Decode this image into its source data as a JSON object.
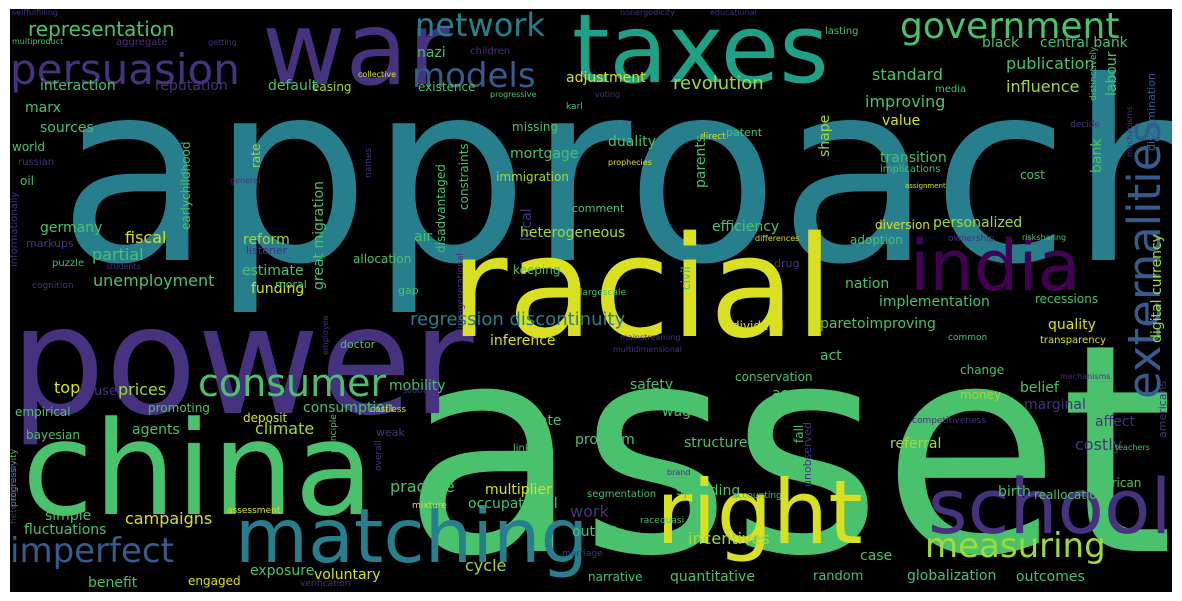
{
  "background": "#000000",
  "palette": [
    "#440154",
    "#46327e",
    "#365c8d",
    "#277f8e",
    "#1fa187",
    "#4ac16d",
    "#a0da39",
    "#fde725"
  ],
  "words": [
    {
      "text": "approach",
      "color": "#277f8e"
    },
    {
      "text": "asset",
      "color": "#4ac16d"
    },
    {
      "text": "power",
      "color": "#46327e"
    },
    {
      "text": "racial",
      "color": "#d9e021"
    },
    {
      "text": "china",
      "color": "#4ac16d"
    },
    {
      "text": "war",
      "color": "#46327e"
    },
    {
      "text": "taxes",
      "color": "#1fa187"
    },
    {
      "text": "right",
      "color": "#d9e021"
    },
    {
      "text": "india",
      "color": "#440154"
    },
    {
      "text": "school",
      "color": "#46327e"
    },
    {
      "text": "matching",
      "color": "#277f8e"
    },
    {
      "text": "externalities",
      "color": "#365c8d"
    },
    {
      "text": "persuasion",
      "color": "#46327e"
    },
    {
      "text": "government",
      "color": "#4ac16d"
    },
    {
      "text": "consumer",
      "color": "#4ac16d"
    },
    {
      "text": "measuring",
      "color": "#a0da39"
    },
    {
      "text": "imperfect",
      "color": "#365c8d"
    },
    {
      "text": "network",
      "color": "#277f8e"
    },
    {
      "text": "models",
      "color": "#365c8d"
    },
    {
      "text": "representation",
      "color": "#4ac16d"
    },
    {
      "text": "regression discontinuity",
      "color": "#277f8e"
    },
    {
      "text": "revolution",
      "color": "#a0da39"
    },
    {
      "text": "improving",
      "color": "#4ac16d"
    },
    {
      "text": "standard",
      "color": "#4ac16d"
    },
    {
      "text": "publication",
      "color": "#4ac16d"
    },
    {
      "text": "influence",
      "color": "#a0da39"
    },
    {
      "text": "black",
      "color": "#4ac16d"
    },
    {
      "text": "central bank",
      "color": "#4ac16d"
    },
    {
      "text": "labour",
      "color": "#4ac16d"
    },
    {
      "text": "default",
      "color": "#4ac16d"
    },
    {
      "text": "interaction",
      "color": "#4ac16d"
    },
    {
      "text": "reputation",
      "color": "#46327e"
    },
    {
      "text": "adjustment",
      "color": "#d9e021"
    },
    {
      "text": "easing",
      "color": "#a0da39"
    },
    {
      "text": "existence",
      "color": "#4ac16d"
    },
    {
      "text": "marx",
      "color": "#4ac16d"
    },
    {
      "text": "sources",
      "color": "#4ac16d"
    },
    {
      "text": "world",
      "color": "#4ac16d"
    },
    {
      "text": "nazi",
      "color": "#4ac16d"
    },
    {
      "text": "children",
      "color": "#46327e"
    },
    {
      "text": "aggregate",
      "color": "#46327e"
    },
    {
      "text": "getting",
      "color": "#46327e"
    },
    {
      "text": "multiproduct",
      "color": "#4ac16d"
    },
    {
      "text": "selffulfilling",
      "color": "#46327e"
    },
    {
      "text": "nonergodicity",
      "color": "#46327e"
    },
    {
      "text": "educational",
      "color": "#46327e"
    },
    {
      "text": "lasting",
      "color": "#4ac16d"
    },
    {
      "text": "collective",
      "color": "#d9e021"
    },
    {
      "text": "progressive",
      "color": "#4ac16d"
    },
    {
      "text": "voting",
      "color": "#46327e"
    },
    {
      "text": "distinctively",
      "color": "#4ac16d"
    },
    {
      "text": "discrimination",
      "color": "#365c8d"
    },
    {
      "text": "media",
      "color": "#4ac16d"
    },
    {
      "text": "karl",
      "color": "#4ac16d"
    },
    {
      "text": "missing",
      "color": "#4ac16d"
    },
    {
      "text": "duality",
      "color": "#4ac16d"
    },
    {
      "text": "patent",
      "color": "#4ac16d"
    },
    {
      "text": "value",
      "color": "#d9e021"
    },
    {
      "text": "decide",
      "color": "#46327e"
    },
    {
      "text": "mechanisms",
      "color": "#46327e"
    },
    {
      "text": "prophecies",
      "color": "#d9e021"
    },
    {
      "text": "direct",
      "color": "#d9e021"
    },
    {
      "text": "mortgage",
      "color": "#4ac16d"
    },
    {
      "text": "transition",
      "color": "#4ac16d"
    },
    {
      "text": "implications",
      "color": "#4ac16d"
    },
    {
      "text": "assignment",
      "color": "#d9e021"
    },
    {
      "text": "cost",
      "color": "#4ac16d"
    },
    {
      "text": "immigration",
      "color": "#a0da39"
    },
    {
      "text": "constraints",
      "color": "#4ac16d"
    },
    {
      "text": "parents",
      "color": "#4ac16d"
    },
    {
      "text": "shape",
      "color": "#a0da39"
    },
    {
      "text": "bank",
      "color": "#4ac16d"
    },
    {
      "text": "rate",
      "color": "#a0da39"
    },
    {
      "text": "earlychildhood",
      "color": "#4ac16d"
    },
    {
      "text": "russian",
      "color": "#46327e"
    },
    {
      "text": "oil",
      "color": "#4ac16d"
    },
    {
      "text": "general",
      "color": "#46327e"
    },
    {
      "text": "names",
      "color": "#46327e"
    },
    {
      "text": "informationally",
      "color": "#46327e"
    },
    {
      "text": "disadvantaged",
      "color": "#4ac16d"
    },
    {
      "text": "local",
      "color": "#46327e"
    },
    {
      "text": "comment",
      "color": "#4ac16d"
    },
    {
      "text": "heterogeneous",
      "color": "#a0da39"
    },
    {
      "text": "efficiency",
      "color": "#4ac16d"
    },
    {
      "text": "personalized",
      "color": "#a0da39"
    },
    {
      "text": "diversion",
      "color": "#d9e021"
    },
    {
      "text": "adoption",
      "color": "#4ac16d"
    },
    {
      "text": "differences",
      "color": "#d9e021"
    },
    {
      "text": "ownership",
      "color": "#46327e"
    },
    {
      "text": "risksharing",
      "color": "#4ac16d"
    },
    {
      "text": "digital currency",
      "color": "#a0da39"
    },
    {
      "text": "germany",
      "color": "#4ac16d"
    },
    {
      "text": "fiscal",
      "color": "#d9e021"
    },
    {
      "text": "reform",
      "color": "#a0da39"
    },
    {
      "text": "markups",
      "color": "#46327e"
    },
    {
      "text": "partial",
      "color": "#4ac16d"
    },
    {
      "text": "listener",
      "color": "#46327e"
    },
    {
      "text": "air",
      "color": "#4ac16d"
    },
    {
      "text": "great migration",
      "color": "#4ac16d"
    },
    {
      "text": "drug",
      "color": "#46327e"
    },
    {
      "text": "unemployment",
      "color": "#4ac16d"
    },
    {
      "text": "estimate",
      "color": "#4ac16d"
    },
    {
      "text": "allocation",
      "color": "#4ac16d"
    },
    {
      "text": "students",
      "color": "#46327e"
    },
    {
      "text": "puzzle",
      "color": "#4ac16d"
    },
    {
      "text": "cognition",
      "color": "#46327e"
    },
    {
      "text": "funding",
      "color": "#d9e021"
    },
    {
      "text": "moral",
      "color": "#4ac16d"
    },
    {
      "text": "gap",
      "color": "#4ac16d"
    },
    {
      "text": "keeping",
      "color": "#4ac16d"
    },
    {
      "text": "civil",
      "color": "#4ac16d"
    },
    {
      "text": "largescale",
      "color": "#4ac16d"
    },
    {
      "text": "intragenerational",
      "color": "#46327e"
    },
    {
      "text": "nation",
      "color": "#4ac16d"
    },
    {
      "text": "implementation",
      "color": "#4ac16d"
    },
    {
      "text": "recessions",
      "color": "#4ac16d"
    },
    {
      "text": "quality",
      "color": "#d9e021"
    },
    {
      "text": "transparency",
      "color": "#d9e021"
    },
    {
      "text": "common",
      "color": "#4ac16d"
    },
    {
      "text": "paretoimproving",
      "color": "#4ac16d"
    },
    {
      "text": "dividend",
      "color": "#d9e021"
    },
    {
      "text": "mainstreaming",
      "color": "#46327e"
    },
    {
      "text": "multidimensional",
      "color": "#46327e"
    },
    {
      "text": "employee",
      "color": "#46327e"
    },
    {
      "text": "doctor",
      "color": "#4ac16d"
    },
    {
      "text": "inference",
      "color": "#d9e021"
    },
    {
      "text": "act",
      "color": "#4ac16d"
    },
    {
      "text": "top",
      "color": "#d9e021"
    },
    {
      "text": "prices",
      "color": "#a0da39"
    },
    {
      "text": "use",
      "color": "#46327e"
    },
    {
      "text": "mobility",
      "color": "#4ac16d"
    },
    {
      "text": "consumption",
      "color": "#4ac16d"
    },
    {
      "text": "safety",
      "color": "#4ac16d"
    },
    {
      "text": "conservation",
      "color": "#4ac16d"
    },
    {
      "text": "change",
      "color": "#4ac16d"
    },
    {
      "text": "belief",
      "color": "#4ac16d"
    },
    {
      "text": "marginal",
      "color": "#46327e"
    },
    {
      "text": "promoting",
      "color": "#4ac16d"
    },
    {
      "text": "deposit",
      "color": "#d9e021"
    },
    {
      "text": "access",
      "color": "#4ac16d"
    },
    {
      "text": "money",
      "color": "#a0da39"
    },
    {
      "text": "empirical",
      "color": "#4ac16d"
    },
    {
      "text": "agents",
      "color": "#4ac16d"
    },
    {
      "text": "climate",
      "color": "#a0da39"
    },
    {
      "text": "costless",
      "color": "#d9e021"
    },
    {
      "text": "south",
      "color": "#46327e"
    },
    {
      "text": "weak",
      "color": "#46327e"
    },
    {
      "text": "wage",
      "color": "#4ac16d"
    },
    {
      "text": "bayesian",
      "color": "#4ac16d"
    },
    {
      "text": "state",
      "color": "#4ac16d"
    },
    {
      "text": "program",
      "color": "#4ac16d"
    },
    {
      "text": "structure",
      "color": "#4ac16d"
    },
    {
      "text": "referral",
      "color": "#a0da39"
    },
    {
      "text": "costly",
      "color": "#46327e"
    },
    {
      "text": "affect",
      "color": "#46327e"
    },
    {
      "text": "americans",
      "color": "#46327e"
    },
    {
      "text": "mechanisms",
      "color": "#46327e"
    },
    {
      "text": "competitiveness",
      "color": "#46327e"
    },
    {
      "text": "fall",
      "color": "#4ac16d"
    },
    {
      "text": "unobserved",
      "color": "#46327e"
    },
    {
      "text": "teachers",
      "color": "#4ac16d"
    },
    {
      "text": "revealing",
      "color": "#4ac16d"
    },
    {
      "text": "progressivity",
      "color": "#4ac16d"
    },
    {
      "text": "heterogeneity",
      "color": "#46327e"
    },
    {
      "text": "principle",
      "color": "#4ac16d"
    },
    {
      "text": "overall",
      "color": "#46327e"
    },
    {
      "text": "mutual",
      "color": "#4ac16d"
    },
    {
      "text": "links",
      "color": "#4ac16d"
    },
    {
      "text": "brand",
      "color": "#46327e"
    },
    {
      "text": "practice",
      "color": "#4ac16d"
    },
    {
      "text": "spending",
      "color": "#4ac16d"
    },
    {
      "text": "accounting",
      "color": "#4ac16d"
    },
    {
      "text": "african",
      "color": "#4ac16d"
    },
    {
      "text": "birth",
      "color": "#4ac16d"
    },
    {
      "text": "reallocation",
      "color": "#4ac16d"
    },
    {
      "text": "multiplier",
      "color": "#d9e021"
    },
    {
      "text": "segmentation",
      "color": "#4ac16d"
    },
    {
      "text": "simple",
      "color": "#4ac16d"
    },
    {
      "text": "fluctuations",
      "color": "#4ac16d"
    },
    {
      "text": "campaigns",
      "color": "#d9e021"
    },
    {
      "text": "assessment",
      "color": "#d9e021"
    },
    {
      "text": "mixture",
      "color": "#d9e021"
    },
    {
      "text": "occupational",
      "color": "#4ac16d"
    },
    {
      "text": "work",
      "color": "#46327e"
    },
    {
      "text": "output",
      "color": "#4ac16d"
    },
    {
      "text": "race",
      "color": "#4ac16d"
    },
    {
      "text": "quasi",
      "color": "#4ac16d"
    },
    {
      "text": "incentives",
      "color": "#a0da39"
    },
    {
      "text": "case",
      "color": "#4ac16d"
    },
    {
      "text": "marriage",
      "color": "#46327e"
    },
    {
      "text": "benefit",
      "color": "#4ac16d"
    },
    {
      "text": "engaged",
      "color": "#d9e021"
    },
    {
      "text": "exposure",
      "color": "#4ac16d"
    },
    {
      "text": "voluntary",
      "color": "#d9e021"
    },
    {
      "text": "cycle",
      "color": "#a0da39"
    },
    {
      "text": "narrative",
      "color": "#4ac16d"
    },
    {
      "text": "quantitative",
      "color": "#4ac16d"
    },
    {
      "text": "random",
      "color": "#4ac16d"
    },
    {
      "text": "globalization",
      "color": "#4ac16d"
    },
    {
      "text": "outcomes",
      "color": "#4ac16d"
    },
    {
      "text": "verification",
      "color": "#46327e"
    }
  ]
}
